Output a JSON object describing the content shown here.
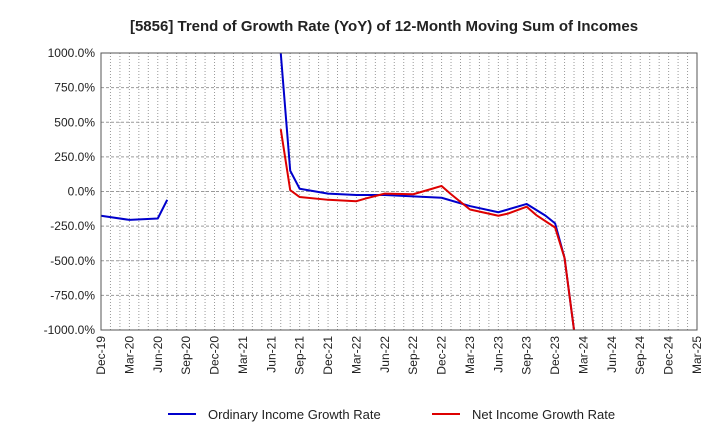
{
  "chart_data": {
    "type": "line",
    "title": "[5856]  Trend of Growth Rate (YoY) of 12-Month Moving Sum of Incomes",
    "xlabel": "",
    "ylabel": "",
    "grid": true,
    "legend_position": "bottom",
    "ylim": [
      -1000,
      1000
    ],
    "y_ticks": [
      1000,
      750,
      500,
      250,
      0,
      -250,
      -500,
      -750,
      -1000
    ],
    "y_tick_labels": [
      "1000.0%",
      "750.0%",
      "500.0%",
      "250.0%",
      "0.0%",
      "-250.0%",
      "-500.0%",
      "-750.0%",
      "-1000.0%"
    ],
    "x_range": [
      "2019-12",
      "2025-03"
    ],
    "x_tick_labels": [
      "Dec-19",
      "Mar-20",
      "Jun-20",
      "Sep-20",
      "Dec-20",
      "Mar-21",
      "Jun-21",
      "Sep-21",
      "Dec-21",
      "Mar-22",
      "Jun-22",
      "Sep-22",
      "Dec-22",
      "Mar-23",
      "Jun-23",
      "Sep-23",
      "Dec-23",
      "Mar-24",
      "Jun-24",
      "Sep-24",
      "Dec-24",
      "Mar-25"
    ],
    "series": [
      {
        "name": "Ordinary Income Growth Rate",
        "color": "#0000cc",
        "points": [
          [
            "2019-12",
            -175
          ],
          [
            "2020-03",
            -205
          ],
          [
            "2020-06",
            -195
          ],
          [
            "2020-07",
            -60
          ],
          null,
          [
            "2021-07",
            1000
          ],
          [
            "2021-08",
            150
          ],
          [
            "2021-09",
            20
          ],
          [
            "2021-12",
            -15
          ],
          [
            "2022-03",
            -25
          ],
          [
            "2022-06",
            -25
          ],
          [
            "2022-09",
            -35
          ],
          [
            "2022-12",
            -45
          ],
          [
            "2023-03",
            -105
          ],
          [
            "2023-06",
            -150
          ],
          [
            "2023-09",
            -90
          ],
          [
            "2023-11",
            -175
          ],
          [
            "2023-12",
            -230
          ],
          [
            "2024-01",
            -480
          ],
          [
            "2024-02",
            -1000
          ]
        ]
      },
      {
        "name": "Net Income Growth Rate",
        "color": "#dd0000",
        "points": [
          [
            "2021-07",
            450
          ],
          [
            "2021-08",
            10
          ],
          [
            "2021-09",
            -40
          ],
          [
            "2021-12",
            -60
          ],
          [
            "2022-03",
            -70
          ],
          [
            "2022-04",
            -50
          ],
          [
            "2022-06",
            -15
          ],
          [
            "2022-09",
            -20
          ],
          [
            "2022-11",
            20
          ],
          [
            "2022-12",
            40
          ],
          [
            "2023-01",
            -20
          ],
          [
            "2023-03",
            -130
          ],
          [
            "2023-06",
            -175
          ],
          [
            "2023-07",
            -160
          ],
          [
            "2023-09",
            -110
          ],
          [
            "2023-10",
            -170
          ],
          [
            "2023-12",
            -260
          ],
          [
            "2024-01",
            -480
          ],
          [
            "2024-02",
            -1000
          ]
        ]
      }
    ]
  }
}
